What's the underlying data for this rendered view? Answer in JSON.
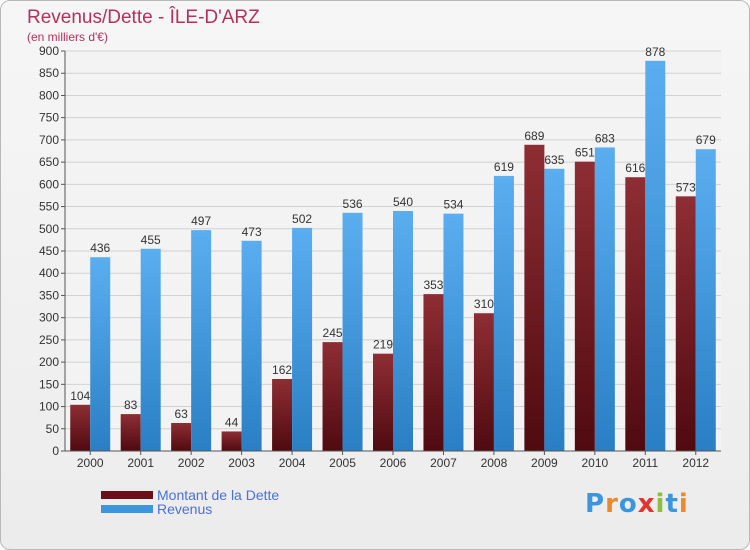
{
  "title": "Revenus/Dette - ÎLE-D'ARZ",
  "subtitle": "(en milliers d'€)",
  "colors": {
    "dette": "#7a1e26",
    "revenus": "#3d96dc",
    "title": "#b5305a"
  },
  "chart_data": {
    "type": "bar",
    "title": "Revenus/Dette - ÎLE-D'ARZ",
    "ylabel": "(en milliers d'€)",
    "xlabel": "",
    "ylim": [
      0,
      900
    ],
    "yticks": [
      "0",
      "50",
      "100",
      "150",
      "200",
      "250",
      "300",
      "350",
      "400",
      "450",
      "500",
      "550",
      "600",
      "650",
      "700",
      "750",
      "800",
      "850",
      "900"
    ],
    "grid": true,
    "legend_position": "bottom-left",
    "categories": [
      "2000",
      "2001",
      "2002",
      "2003",
      "2004",
      "2005",
      "2006",
      "2007",
      "2008",
      "2009",
      "2010",
      "2011",
      "2012"
    ],
    "series": [
      {
        "name": "Montant de la Dette",
        "values": [
          104,
          83,
          63,
          44,
          162,
          245,
          219,
          353,
          310,
          689,
          651,
          616,
          573
        ]
      },
      {
        "name": "Revenus",
        "values": [
          436,
          455,
          497,
          473,
          502,
          536,
          540,
          534,
          619,
          635,
          683,
          878,
          679
        ]
      }
    ]
  },
  "legend": {
    "items": [
      {
        "label": "Montant de la Dette",
        "color": "#6b1018"
      },
      {
        "label": "Revenus",
        "color": "#3d96dc"
      }
    ]
  },
  "logo": {
    "text": "Proxiti",
    "letters": [
      "P",
      "r",
      "o",
      "x",
      "i",
      "t",
      "i"
    ],
    "letter_colors": [
      "#3d96dc",
      "#e98a2c",
      "#3d96dc",
      "#e2342a",
      "#8bbf3c",
      "#3d96dc",
      "#e98a2c"
    ]
  }
}
